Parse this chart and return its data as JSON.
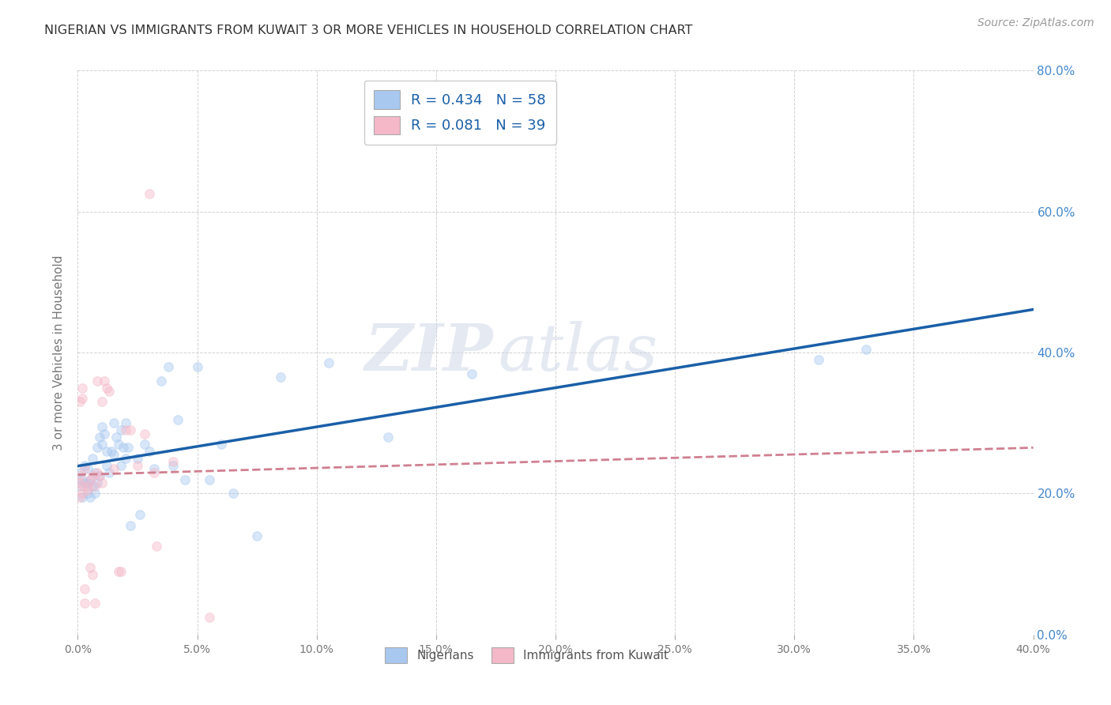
{
  "title": "NIGERIAN VS IMMIGRANTS FROM KUWAIT 3 OR MORE VEHICLES IN HOUSEHOLD CORRELATION CHART",
  "source": "Source: ZipAtlas.com",
  "xlabel": "",
  "ylabel": "3 or more Vehicles in Household",
  "xlim": [
    0.0,
    0.4
  ],
  "ylim": [
    0.0,
    0.8
  ],
  "xticks": [
    0.0,
    0.05,
    0.1,
    0.15,
    0.2,
    0.25,
    0.3,
    0.35,
    0.4
  ],
  "xtick_labels": [
    "0.0%",
    "5.0%",
    "10.0%",
    "15.0%",
    "20.0%",
    "25.0%",
    "30.0%",
    "35.0%",
    "40.0%"
  ],
  "ytick_labels": [
    "0.0%",
    "20.0%",
    "40.0%",
    "60.0%",
    "80.0%"
  ],
  "yticks": [
    0.0,
    0.2,
    0.4,
    0.6,
    0.8
  ],
  "nigerian_x": [
    0.001,
    0.001,
    0.002,
    0.002,
    0.003,
    0.003,
    0.004,
    0.004,
    0.004,
    0.005,
    0.005,
    0.006,
    0.006,
    0.007,
    0.007,
    0.008,
    0.008,
    0.009,
    0.009,
    0.01,
    0.01,
    0.011,
    0.012,
    0.012,
    0.013,
    0.014,
    0.015,
    0.015,
    0.016,
    0.017,
    0.018,
    0.018,
    0.019,
    0.02,
    0.02,
    0.021,
    0.022,
    0.025,
    0.026,
    0.028,
    0.03,
    0.032,
    0.035,
    0.038,
    0.04,
    0.042,
    0.045,
    0.05,
    0.055,
    0.06,
    0.065,
    0.075,
    0.085,
    0.105,
    0.13,
    0.165,
    0.31,
    0.33
  ],
  "nigerian_y": [
    0.21,
    0.23,
    0.22,
    0.195,
    0.215,
    0.24,
    0.2,
    0.215,
    0.235,
    0.195,
    0.22,
    0.21,
    0.25,
    0.2,
    0.23,
    0.215,
    0.265,
    0.225,
    0.28,
    0.295,
    0.27,
    0.285,
    0.24,
    0.26,
    0.23,
    0.26,
    0.3,
    0.255,
    0.28,
    0.27,
    0.24,
    0.29,
    0.265,
    0.3,
    0.25,
    0.265,
    0.155,
    0.25,
    0.17,
    0.27,
    0.26,
    0.235,
    0.36,
    0.38,
    0.24,
    0.305,
    0.22,
    0.38,
    0.22,
    0.27,
    0.2,
    0.14,
    0.365,
    0.385,
    0.28,
    0.37,
    0.39,
    0.405
  ],
  "kuwait_x": [
    0.001,
    0.001,
    0.001,
    0.001,
    0.002,
    0.002,
    0.002,
    0.002,
    0.003,
    0.003,
    0.003,
    0.004,
    0.004,
    0.005,
    0.005,
    0.006,
    0.006,
    0.007,
    0.007,
    0.008,
    0.008,
    0.009,
    0.01,
    0.01,
    0.011,
    0.012,
    0.013,
    0.015,
    0.017,
    0.018,
    0.02,
    0.022,
    0.025,
    0.028,
    0.03,
    0.032,
    0.033,
    0.04,
    0.055
  ],
  "kuwait_y": [
    0.195,
    0.215,
    0.225,
    0.33,
    0.2,
    0.21,
    0.35,
    0.335,
    0.235,
    0.065,
    0.045,
    0.21,
    0.205,
    0.22,
    0.095,
    0.225,
    0.085,
    0.045,
    0.21,
    0.23,
    0.36,
    0.225,
    0.215,
    0.33,
    0.36,
    0.35,
    0.345,
    0.235,
    0.09,
    0.09,
    0.29,
    0.29,
    0.24,
    0.285,
    0.625,
    0.23,
    0.125,
    0.245,
    0.025
  ],
  "nigerian_color": "#a8c8f0",
  "kuwait_color": "#f5b8c8",
  "nigerian_line_color": "#1a5fa8",
  "kuwait_line_color": "#d08090",
  "R_nigerian": 0.434,
  "N_nigerian": 58,
  "R_kuwait": 0.081,
  "N_kuwait": 39,
  "watermark_zip": "ZIP",
  "watermark_atlas": "atlas",
  "legend_label1": "Nigerians",
  "legend_label2": "Immigrants from Kuwait",
  "background_color": "#ffffff",
  "grid_color": "#cccccc",
  "title_color": "#333333",
  "axis_label_color": "#777777",
  "right_tick_color": "#4488cc",
  "legend_r_color": "#1a5fa8",
  "marker_size": 70,
  "marker_alpha": 0.45
}
